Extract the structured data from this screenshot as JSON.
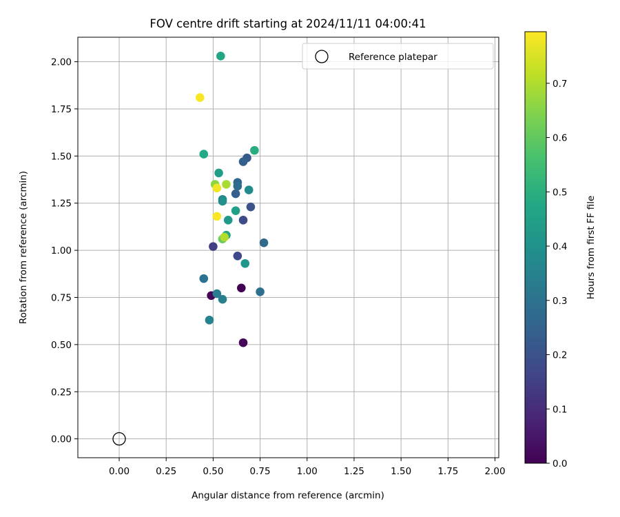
{
  "chart_data": {
    "type": "scatter",
    "title": "FOV centre drift starting at 2024/11/11 04:00:41",
    "xlabel": "Angular distance from reference (arcmin)",
    "ylabel": "Rotation from reference (arcmin)",
    "xlim": [
      -0.22,
      2.02
    ],
    "ylim": [
      -0.1,
      2.13
    ],
    "xticks": [
      "0.00",
      "0.25",
      "0.50",
      "0.75",
      "1.00",
      "1.25",
      "1.50",
      "1.75",
      "2.00"
    ],
    "yticks": [
      "0.00",
      "0.25",
      "0.50",
      "0.75",
      "1.00",
      "1.25",
      "1.50",
      "1.75",
      "2.00"
    ],
    "grid": true,
    "legend": {
      "placement": "top-right",
      "entries": [
        "Reference platepar"
      ]
    },
    "reference_point": {
      "x": 0.0,
      "y": 0.0,
      "label": "Reference platepar"
    },
    "colorbar": {
      "label": "Hours from first FF file",
      "colormap": "viridis",
      "range": [
        0.0,
        0.795
      ],
      "ticks": [
        "0.0",
        "0.1",
        "0.2",
        "0.3",
        "0.4",
        "0.5",
        "0.6",
        "0.7"
      ]
    },
    "points": [
      {
        "x": 0.65,
        "y": 0.8,
        "c": 0.0
      },
      {
        "x": 0.49,
        "y": 0.76,
        "c": 0.01
      },
      {
        "x": 0.66,
        "y": 0.51,
        "c": 0.01
      },
      {
        "x": 0.5,
        "y": 1.02,
        "c": 0.15
      },
      {
        "x": 0.63,
        "y": 0.97,
        "c": 0.17
      },
      {
        "x": 0.66,
        "y": 1.16,
        "c": 0.18
      },
      {
        "x": 0.7,
        "y": 1.23,
        "c": 0.2
      },
      {
        "x": 0.68,
        "y": 1.49,
        "c": 0.22
      },
      {
        "x": 0.66,
        "y": 1.47,
        "c": 0.24
      },
      {
        "x": 0.62,
        "y": 1.3,
        "c": 0.24
      },
      {
        "x": 0.63,
        "y": 1.36,
        "c": 0.26
      },
      {
        "x": 0.63,
        "y": 1.34,
        "c": 0.28
      },
      {
        "x": 0.77,
        "y": 1.04,
        "c": 0.27
      },
      {
        "x": 0.75,
        "y": 0.78,
        "c": 0.29
      },
      {
        "x": 0.45,
        "y": 0.85,
        "c": 0.3
      },
      {
        "x": 0.52,
        "y": 0.77,
        "c": 0.33
      },
      {
        "x": 0.55,
        "y": 0.74,
        "c": 0.34
      },
      {
        "x": 0.48,
        "y": 0.63,
        "c": 0.35
      },
      {
        "x": 0.55,
        "y": 1.27,
        "c": 0.37
      },
      {
        "x": 0.55,
        "y": 1.26,
        "c": 0.39
      },
      {
        "x": 0.69,
        "y": 1.32,
        "c": 0.38
      },
      {
        "x": 0.67,
        "y": 0.93,
        "c": 0.41
      },
      {
        "x": 0.58,
        "y": 1.16,
        "c": 0.42
      },
      {
        "x": 0.53,
        "y": 1.41,
        "c": 0.44
      },
      {
        "x": 0.62,
        "y": 1.21,
        "c": 0.45
      },
      {
        "x": 0.57,
        "y": 1.08,
        "c": 0.47
      },
      {
        "x": 0.45,
        "y": 1.51,
        "c": 0.48
      },
      {
        "x": 0.72,
        "y": 1.53,
        "c": 0.49
      },
      {
        "x": 0.54,
        "y": 2.03,
        "c": 0.47
      },
      {
        "x": 0.55,
        "y": 1.06,
        "c": 0.61
      },
      {
        "x": 0.51,
        "y": 1.35,
        "c": 0.66
      },
      {
        "x": 0.57,
        "y": 1.35,
        "c": 0.69
      },
      {
        "x": 0.56,
        "y": 1.07,
        "c": 0.7
      },
      {
        "x": 0.52,
        "y": 1.33,
        "c": 0.78
      },
      {
        "x": 0.52,
        "y": 1.18,
        "c": 0.79
      },
      {
        "x": 0.43,
        "y": 1.81,
        "c": 0.79
      }
    ]
  }
}
